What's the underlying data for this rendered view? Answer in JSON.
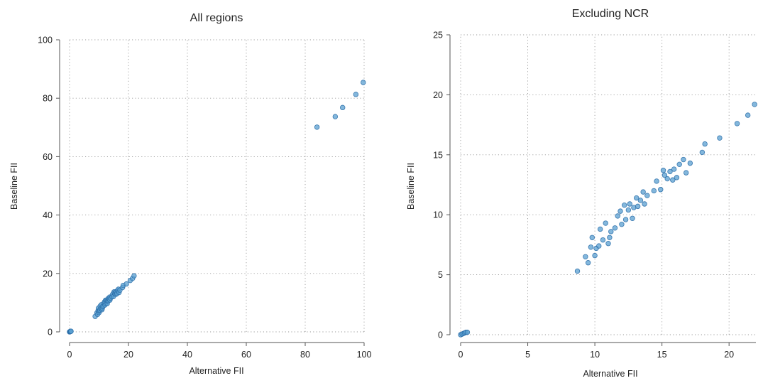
{
  "colors": {
    "point_fill": "#5a9fd0",
    "point_stroke": "#2b6ea8"
  },
  "chart_data": [
    {
      "type": "scatter",
      "title": "All regions",
      "xlabel": "Alternative FII",
      "ylabel": "Baseline FII",
      "xlim": [
        0,
        100
      ],
      "ylim": [
        0,
        100
      ],
      "xticks": [
        0,
        20,
        40,
        60,
        80,
        100
      ],
      "yticks": [
        0,
        20,
        40,
        60,
        80,
        100
      ],
      "grid": true,
      "points": [
        [
          0,
          0
        ],
        [
          0.1,
          0.05
        ],
        [
          0.2,
          0.1
        ],
        [
          0.3,
          0.15
        ],
        [
          0.4,
          0.2
        ],
        [
          0.5,
          0.2
        ],
        [
          8.7,
          5.3
        ],
        [
          9.3,
          6.5
        ],
        [
          9.5,
          6.0
        ],
        [
          9.7,
          7.3
        ],
        [
          9.8,
          8.1
        ],
        [
          10.0,
          6.6
        ],
        [
          10.1,
          7.2
        ],
        [
          10.3,
          7.4
        ],
        [
          10.4,
          8.8
        ],
        [
          10.6,
          7.9
        ],
        [
          10.8,
          9.3
        ],
        [
          11.0,
          7.6
        ],
        [
          11.1,
          8.1
        ],
        [
          11.2,
          8.6
        ],
        [
          11.5,
          8.9
        ],
        [
          11.7,
          9.9
        ],
        [
          11.9,
          10.3
        ],
        [
          12.0,
          9.2
        ],
        [
          12.2,
          10.8
        ],
        [
          12.3,
          9.6
        ],
        [
          12.5,
          10.4
        ],
        [
          12.6,
          10.9
        ],
        [
          12.8,
          9.7
        ],
        [
          12.9,
          10.6
        ],
        [
          13.1,
          11.4
        ],
        [
          13.2,
          10.7
        ],
        [
          13.4,
          11.2
        ],
        [
          13.6,
          11.9
        ],
        [
          13.7,
          10.9
        ],
        [
          13.9,
          11.6
        ],
        [
          14.4,
          12.0
        ],
        [
          14.6,
          12.8
        ],
        [
          14.9,
          12.1
        ],
        [
          15.1,
          13.7
        ],
        [
          15.2,
          13.3
        ],
        [
          15.4,
          13.0
        ],
        [
          15.6,
          13.6
        ],
        [
          15.8,
          12.9
        ],
        [
          15.9,
          13.8
        ],
        [
          16.1,
          13.1
        ],
        [
          16.3,
          14.2
        ],
        [
          16.6,
          14.6
        ],
        [
          16.8,
          13.5
        ],
        [
          17.1,
          14.3
        ],
        [
          18.0,
          15.2
        ],
        [
          18.2,
          15.9
        ],
        [
          19.3,
          16.4
        ],
        [
          20.6,
          17.6
        ],
        [
          21.4,
          18.3
        ],
        [
          21.9,
          19.2
        ],
        [
          84.0,
          70.1
        ],
        [
          90.2,
          73.7
        ],
        [
          92.7,
          76.8
        ],
        [
          97.2,
          81.3
        ],
        [
          99.7,
          85.4
        ]
      ]
    },
    {
      "type": "scatter",
      "title": "Excluding NCR",
      "xlabel": "Alternative FII",
      "ylabel": "Baseline FII",
      "xlim": [
        0,
        22
      ],
      "ylim": [
        0,
        25
      ],
      "xticks": [
        0,
        5,
        10,
        15,
        20
      ],
      "yticks": [
        0,
        5,
        10,
        15,
        20,
        25
      ],
      "grid": true,
      "points": [
        [
          0,
          0
        ],
        [
          0.1,
          0.05
        ],
        [
          0.2,
          0.1
        ],
        [
          0.3,
          0.15
        ],
        [
          0.4,
          0.2
        ],
        [
          0.5,
          0.2
        ],
        [
          8.7,
          5.3
        ],
        [
          9.3,
          6.5
        ],
        [
          9.5,
          6.0
        ],
        [
          9.7,
          7.3
        ],
        [
          9.8,
          8.1
        ],
        [
          10.0,
          6.6
        ],
        [
          10.1,
          7.2
        ],
        [
          10.3,
          7.4
        ],
        [
          10.4,
          8.8
        ],
        [
          10.6,
          7.9
        ],
        [
          10.8,
          9.3
        ],
        [
          11.0,
          7.6
        ],
        [
          11.1,
          8.1
        ],
        [
          11.2,
          8.6
        ],
        [
          11.5,
          8.9
        ],
        [
          11.7,
          9.9
        ],
        [
          11.9,
          10.3
        ],
        [
          12.0,
          9.2
        ],
        [
          12.2,
          10.8
        ],
        [
          12.3,
          9.6
        ],
        [
          12.5,
          10.4
        ],
        [
          12.6,
          10.9
        ],
        [
          12.8,
          9.7
        ],
        [
          12.9,
          10.6
        ],
        [
          13.1,
          11.4
        ],
        [
          13.2,
          10.7
        ],
        [
          13.4,
          11.2
        ],
        [
          13.6,
          11.9
        ],
        [
          13.7,
          10.9
        ],
        [
          13.9,
          11.6
        ],
        [
          14.4,
          12.0
        ],
        [
          14.6,
          12.8
        ],
        [
          14.9,
          12.1
        ],
        [
          15.1,
          13.7
        ],
        [
          15.2,
          13.3
        ],
        [
          15.4,
          13.0
        ],
        [
          15.6,
          13.6
        ],
        [
          15.8,
          12.9
        ],
        [
          15.9,
          13.8
        ],
        [
          16.1,
          13.1
        ],
        [
          16.3,
          14.2
        ],
        [
          16.6,
          14.6
        ],
        [
          16.8,
          13.5
        ],
        [
          17.1,
          14.3
        ],
        [
          18.0,
          15.2
        ],
        [
          18.2,
          15.9
        ],
        [
          19.3,
          16.4
        ],
        [
          20.6,
          17.6
        ],
        [
          21.4,
          18.3
        ],
        [
          21.9,
          19.2
        ]
      ]
    }
  ]
}
